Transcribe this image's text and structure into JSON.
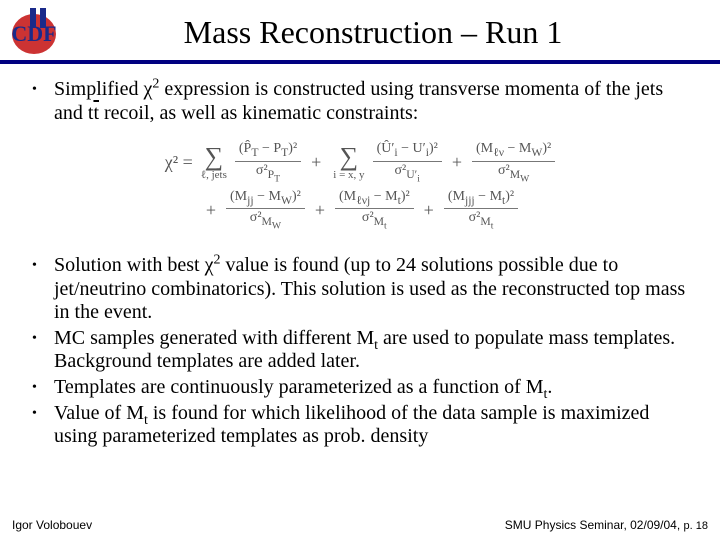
{
  "header": {
    "logo_text_top": "II",
    "logo_text_main": "CDF",
    "title": "Mass Reconstruction – Run 1"
  },
  "colors": {
    "rule": "#000080",
    "logo_circle": "#cc3333",
    "logo_bars": "#1a2a8a",
    "equation_text": "#666666"
  },
  "bullets": [
    {
      "html": "Simplified χ<span class='sup'>2</span> expression is constructed using transverse momenta of the jets and t<span class='overbar'>t</span> recoil, as well as kinematic constraints:"
    }
  ],
  "equation": {
    "lhs": "χ²  =",
    "terms_row1": [
      {
        "sum_under": "ℓ, jets",
        "num": "(P̂<sub>T</sub> − P<sub>T</sub>)²",
        "den": "σ²<sub>P<sub>T</sub></sub>"
      },
      {
        "sum_under": "i = x, y",
        "num": "(Û′<sub>i</sub> − U′<sub>i</sub>)²",
        "den": "σ²<sub>U′<sub>i</sub></sub>"
      },
      {
        "num": "(M<sub>ℓν</sub> − M<sub>W</sub>)²",
        "den": "σ²<sub>M<sub>W</sub></sub>"
      }
    ],
    "terms_row2": [
      {
        "num": "(M<sub>jj</sub> − M<sub>W</sub>)²",
        "den": "σ²<sub>M<sub>W</sub></sub>"
      },
      {
        "num": "(M<sub>ℓνj</sub> − M<sub>t</sub>)²",
        "den": "σ²<sub>M<sub>t</sub></sub>"
      },
      {
        "num": "(M<sub>jjj</sub> − M<sub>t</sub>)²",
        "den": "σ²<sub>M<sub>t</sub></sub>"
      }
    ]
  },
  "bullets_after": [
    {
      "html": "Solution with best χ<span class='sup'>2</span> value is found (up to 24 solutions possible due to jet/neutrino combinatorics). This solution is used as the reconstructed top mass in the event."
    },
    {
      "html": "MC samples generated with different M<span class='sub'>t</span> are used to populate mass templates. Background templates are added later."
    },
    {
      "html": "Templates are continuously parameterized as a function of M<span class='sub'>t</span>."
    },
    {
      "html": "Value of M<span class='sub'>t</span> is found for which likelihood of the data sample is maximized using parameterized templates as prob. density"
    }
  ],
  "footer": {
    "left": "Igor Volobouev",
    "right_prefix": "SMU Physics Seminar, 02/09/04, ",
    "page_label": "p. ",
    "page_number": "18"
  }
}
